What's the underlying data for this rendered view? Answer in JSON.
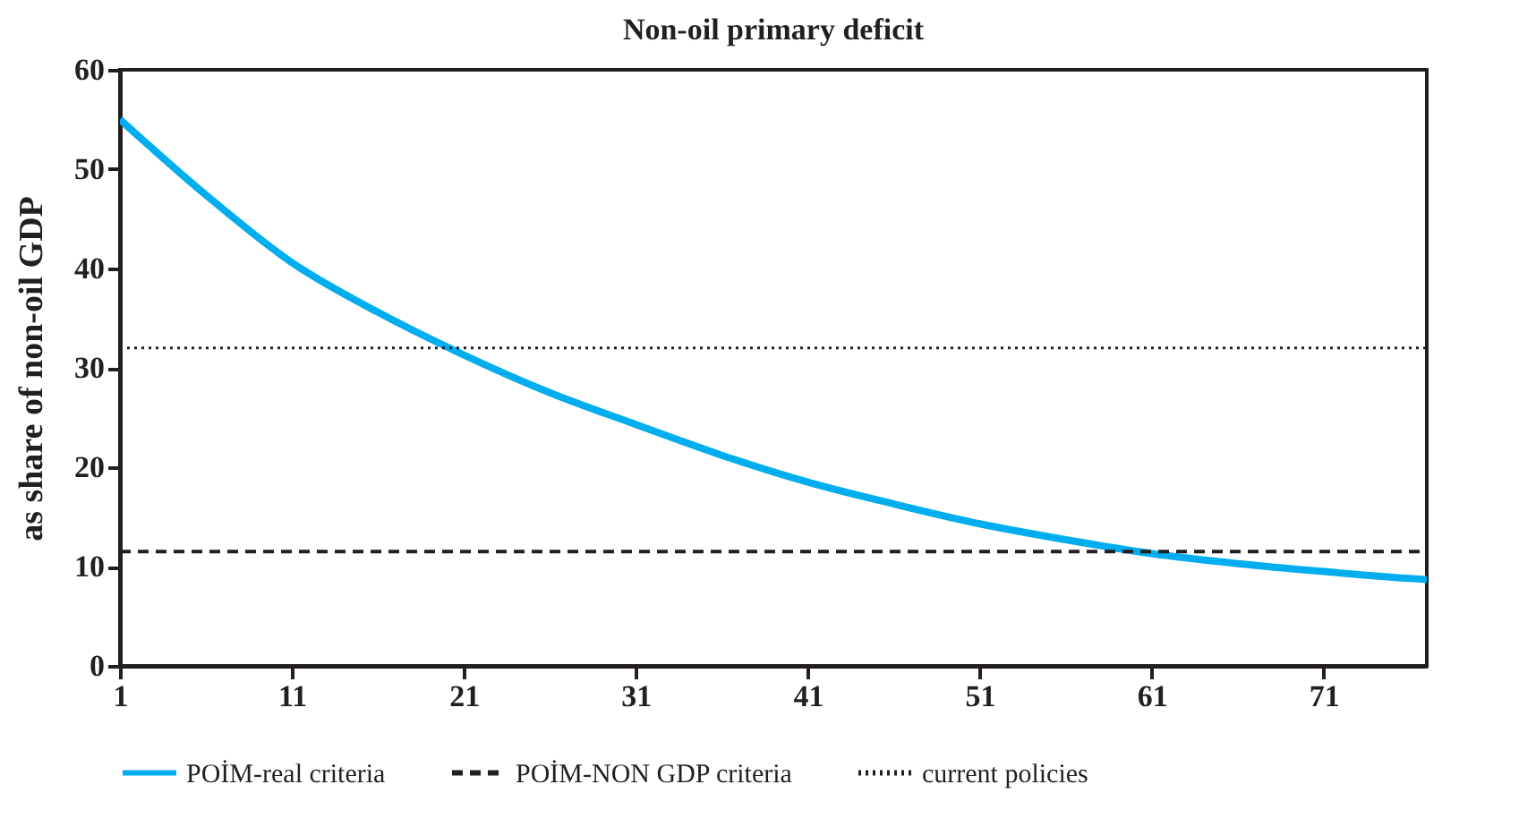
{
  "chart_data": {
    "type": "line",
    "title": "Non-oil primary deficit",
    "ylabel": "as share of non-oil GDP",
    "xlim": [
      1,
      77
    ],
    "xticks": [
      1,
      11,
      21,
      31,
      41,
      51,
      61,
      71
    ],
    "ylim": [
      0,
      60
    ],
    "yticks": [
      0,
      10,
      20,
      30,
      40,
      50,
      60
    ],
    "grid": false,
    "legend": "bottom",
    "series": [
      {
        "name": "POİM-real criteria",
        "color": "#00aeef",
        "line_style": "solid",
        "x": [
          1,
          6,
          11,
          16,
          21,
          26,
          31,
          36,
          41,
          46,
          51,
          56,
          61,
          66,
          71,
          76,
          77
        ],
        "values": [
          55,
          47.4,
          40.6,
          35.6,
          31.3,
          27.5,
          24.3,
          21.2,
          18.5,
          16.3,
          14.3,
          12.7,
          11.3,
          10.3,
          9.5,
          8.8,
          8.7
        ]
      },
      {
        "name": "POİM-NON GDP criteria",
        "color": "#231f20",
        "line_style": "dashed",
        "x": [
          1,
          77
        ],
        "values": [
          11.5,
          11.5
        ]
      },
      {
        "name": "current policies",
        "color": "#231f20",
        "line_style": "dotted",
        "x": [
          1,
          77
        ],
        "values": [
          32,
          32
        ]
      }
    ]
  }
}
